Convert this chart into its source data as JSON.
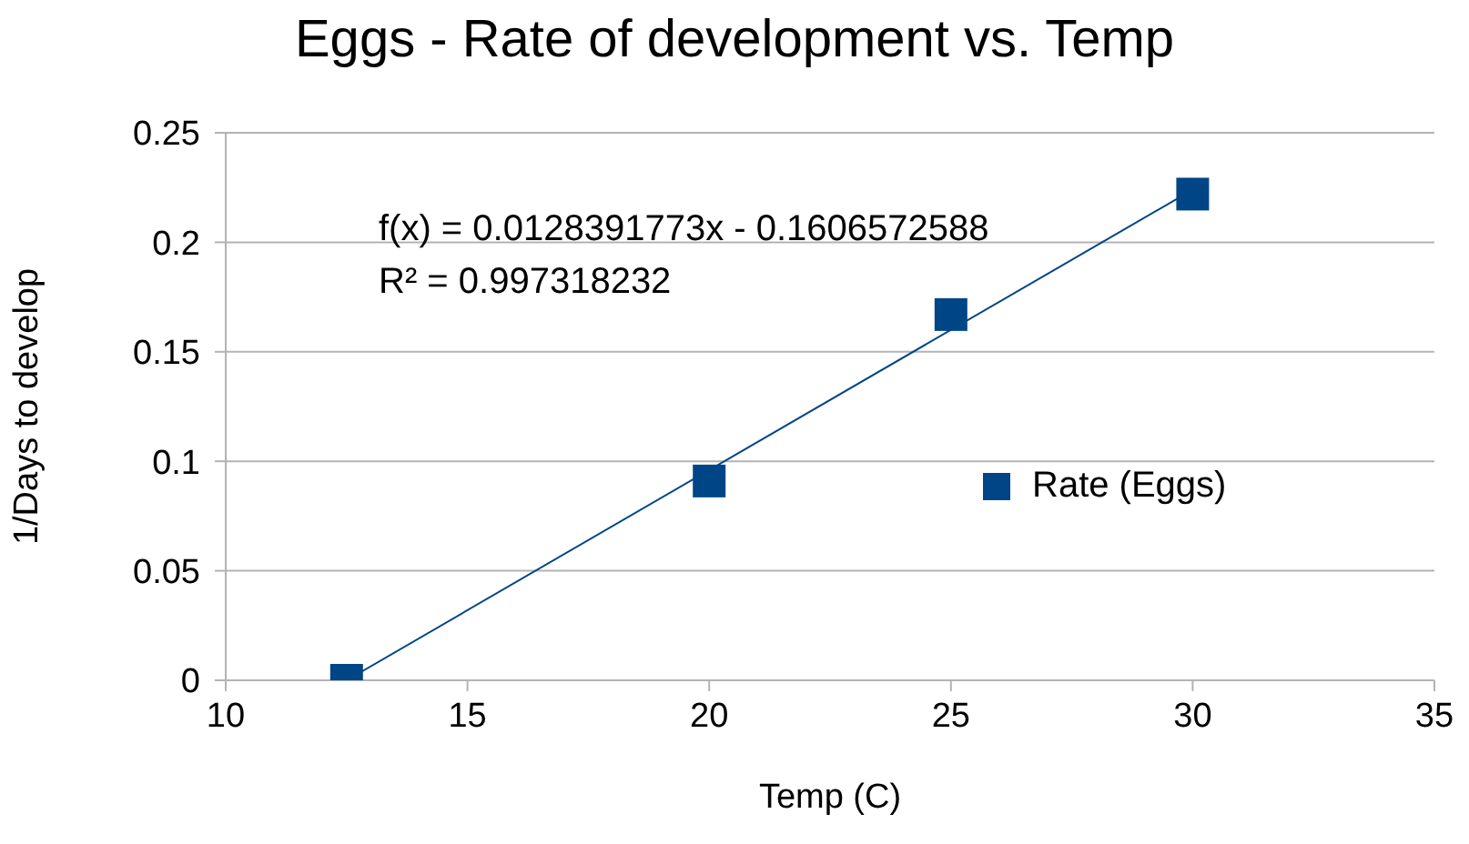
{
  "chart_data": {
    "type": "scatter",
    "title": "Eggs - Rate of development vs. Temp",
    "xlabel": "Temp (C)",
    "ylabel": "1/Days to develop",
    "annotations": [
      "f(x) = 0.0128391773x - 0.1606572588",
      "R² = 0.997318232"
    ],
    "x": [
      12.5,
      20,
      25,
      30
    ],
    "series": [
      {
        "name": "Rate (Eggs)",
        "color": "#004586",
        "values": [
          0,
          0.091,
          0.167,
          0.222
        ],
        "marker": "square"
      },
      {
        "type": "line",
        "color": "#004586",
        "x": [
          12.5,
          30
        ],
        "values": [
          0,
          0.224
        ],
        "marker": "none",
        "line_style": "solid"
      }
    ],
    "xlim": [
      10,
      35
    ],
    "xticks": [
      10,
      15,
      20,
      25,
      30,
      35
    ],
    "ylim": [
      0,
      0.25
    ],
    "yticks": [
      0,
      0.05,
      0.1,
      0.15,
      0.2,
      0.25
    ],
    "grid": "y",
    "legend": "right"
  }
}
